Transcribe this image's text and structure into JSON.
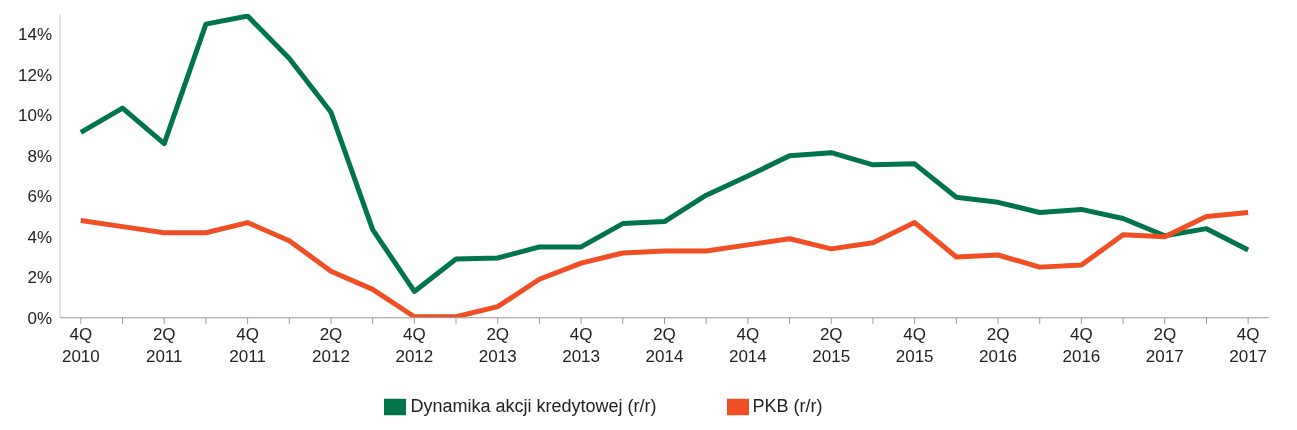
{
  "chart_data": {
    "type": "line",
    "categories": [
      "4Q 2010",
      null,
      "2Q 2011",
      null,
      "4Q 2011",
      null,
      "2Q 2012",
      null,
      "4Q 2012",
      null,
      "2Q 2013",
      null,
      "4Q 2013",
      null,
      "2Q 2014",
      null,
      "4Q 2014",
      null,
      "2Q 2015",
      null,
      "4Q 2015",
      null,
      "2Q 2016",
      null,
      "4Q 2016",
      null,
      "2Q 2017",
      null,
      "4Q 2017"
    ],
    "series": [
      {
        "name": "Dynamika akcji kredytowej (r/r)",
        "color": "#00744a",
        "values": [
          9.15,
          10.35,
          8.6,
          14.5,
          14.9,
          12.8,
          10.15,
          4.35,
          1.3,
          2.9,
          2.95,
          3.5,
          3.5,
          4.65,
          4.75,
          6.05,
          7.0,
          8.0,
          8.15,
          7.55,
          7.6,
          5.95,
          5.7,
          5.2,
          5.35,
          4.9,
          4.05,
          4.4,
          3.35
        ]
      },
      {
        "name": "PKB (r/r)",
        "color": "#f04e23",
        "values": [
          4.8,
          4.5,
          4.2,
          4.2,
          4.7,
          3.8,
          2.3,
          1.4,
          0.05,
          0.05,
          0.55,
          1.9,
          2.7,
          3.2,
          3.3,
          3.3,
          3.6,
          3.9,
          3.4,
          3.7,
          4.7,
          3.0,
          3.1,
          2.5,
          2.6,
          4.1,
          4.0,
          5.0,
          5.2
        ]
      }
    ],
    "ylim": [
      0,
      15
    ],
    "yticks": [
      {
        "value": 0,
        "label": "0%"
      },
      {
        "value": 2,
        "label": "2%"
      },
      {
        "value": 4,
        "label": "4%"
      },
      {
        "value": 6,
        "label": "6%"
      },
      {
        "value": 8,
        "label": "8%"
      },
      {
        "value": 10,
        "label": "10%"
      },
      {
        "value": 12,
        "label": "12%"
      },
      {
        "value": 14,
        "label": "14%"
      }
    ],
    "grid": false,
    "legend": "bottom",
    "marker": "none",
    "line_style": "solid"
  }
}
